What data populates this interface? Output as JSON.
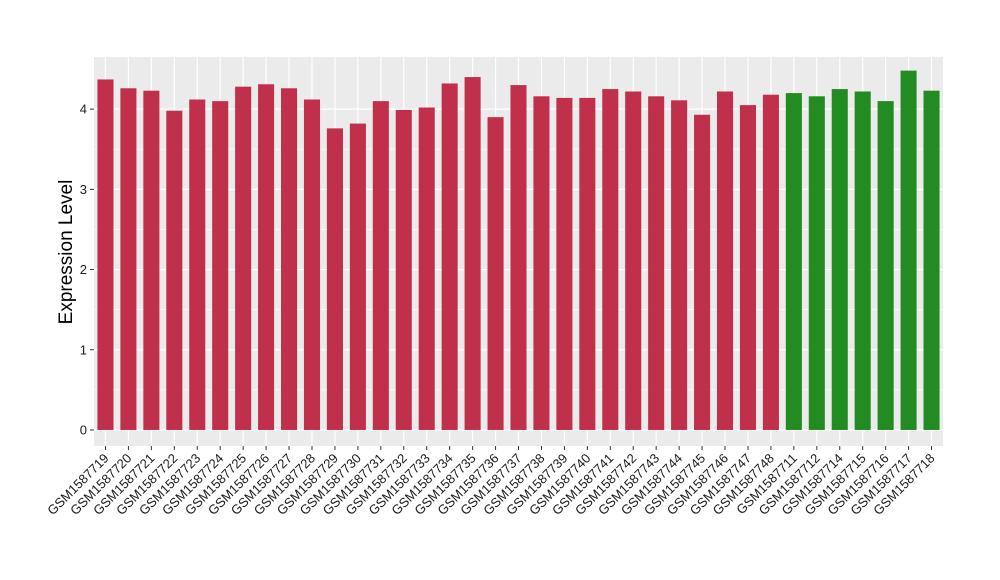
{
  "chart_data": {
    "type": "bar",
    "title": "",
    "xlabel": "",
    "ylabel": "Expression Level",
    "ylim": [
      -0.2,
      4.65
    ],
    "yticks": [
      0,
      1,
      2,
      3,
      4
    ],
    "grid": true,
    "legend": "none",
    "colors": {
      "group_a": "#c0304a",
      "group_b": "#228b22",
      "panel_bg": "#ebebeb",
      "grid": "#ffffff"
    },
    "categories": [
      "GSM1587719",
      "GSM1587720",
      "GSM1587721",
      "GSM1587722",
      "GSM1587723",
      "GSM1587724",
      "GSM1587725",
      "GSM1587726",
      "GSM1587727",
      "GSM1587728",
      "GSM1587729",
      "GSM1587730",
      "GSM1587731",
      "GSM1587732",
      "GSM1587733",
      "GSM1587734",
      "GSM1587735",
      "GSM1587736",
      "GSM1587737",
      "GSM1587738",
      "GSM1587739",
      "GSM1587740",
      "GSM1587741",
      "GSM1587742",
      "GSM1587743",
      "GSM1587744",
      "GSM1587745",
      "GSM1587746",
      "GSM1587747",
      "GSM1587748",
      "GSM1587711",
      "GSM1587712",
      "GSM1587714",
      "GSM1587715",
      "GSM1587716",
      "GSM1587717",
      "GSM1587718"
    ],
    "values": [
      4.37,
      4.26,
      4.23,
      3.98,
      4.12,
      4.1,
      4.28,
      4.31,
      4.26,
      4.12,
      3.76,
      3.82,
      4.1,
      3.99,
      4.02,
      4.32,
      4.4,
      3.9,
      4.3,
      4.16,
      4.14,
      4.14,
      4.25,
      4.22,
      4.16,
      4.11,
      3.93,
      4.22,
      4.05,
      4.18,
      4.2,
      4.16,
      4.25,
      4.22,
      4.1,
      4.48,
      4.23
    ],
    "groups": [
      "a",
      "a",
      "a",
      "a",
      "a",
      "a",
      "a",
      "a",
      "a",
      "a",
      "a",
      "a",
      "a",
      "a",
      "a",
      "a",
      "a",
      "a",
      "a",
      "a",
      "a",
      "a",
      "a",
      "a",
      "a",
      "a",
      "a",
      "a",
      "a",
      "a",
      "b",
      "b",
      "b",
      "b",
      "b",
      "b",
      "b"
    ]
  }
}
